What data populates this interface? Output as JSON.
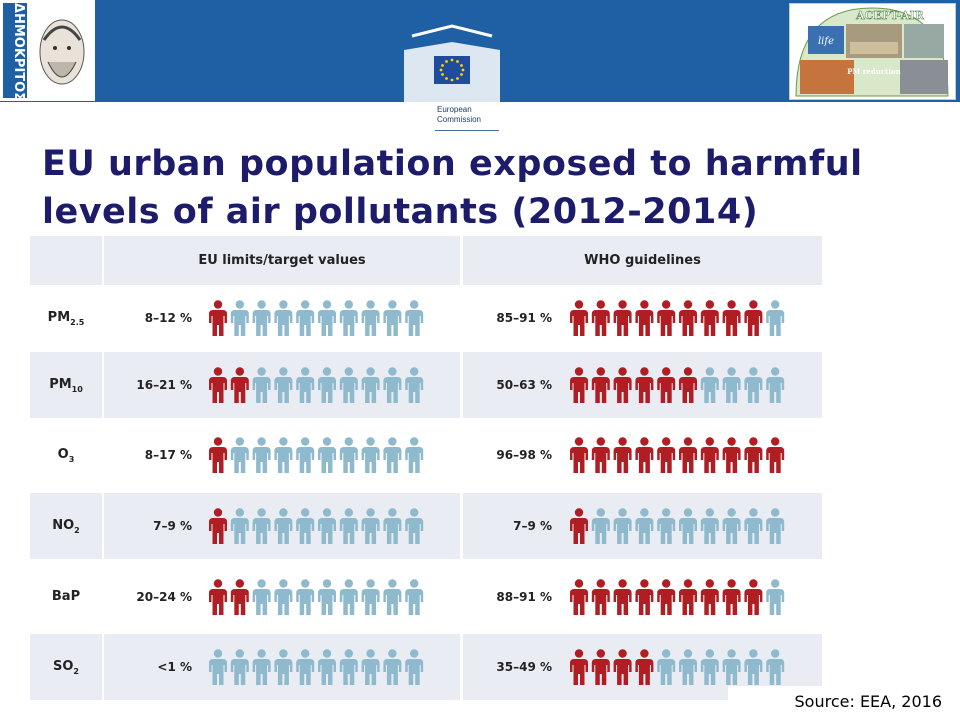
{
  "logos": {
    "left": {
      "text": "ΔΗΜΟΚΡΙΤΟΣ"
    },
    "right": {
      "title": "ACEPT-AIR",
      "subtitle": "PM reduction",
      "mark": "life"
    },
    "center": {
      "line1": "European",
      "line2": "Commission"
    }
  },
  "title": {
    "line1": "EU urban population exposed to harmful",
    "line2": "levels of air pollutants (2012-2014)"
  },
  "table": {
    "headers": {
      "eu": "EU limits/target values",
      "who": "WHO guidelines"
    },
    "total_icons": 10,
    "rows": [
      {
        "pollutant": "PM",
        "sub": "2.5",
        "eu_pct": "8–12 %",
        "eu_red": 1,
        "who_pct": "85–91 %",
        "who_red": 9
      },
      {
        "pollutant": "PM",
        "sub": "10",
        "eu_pct": "16–21 %",
        "eu_red": 2,
        "who_pct": "50–63 %",
        "who_red": 6
      },
      {
        "pollutant": "O",
        "sub": "3",
        "eu_pct": "8–17 %",
        "eu_red": 1,
        "who_pct": "96–98 %",
        "who_red": 10
      },
      {
        "pollutant": "NO",
        "sub": "2",
        "eu_pct": "7–9 %",
        "eu_red": 1,
        "who_pct": "7–9 %",
        "who_red": 1
      },
      {
        "pollutant": "BaP",
        "sub": "",
        "eu_pct": "20–24 %",
        "eu_red": 2,
        "who_pct": "88–91 %",
        "who_red": 9
      },
      {
        "pollutant": "SO",
        "sub": "2",
        "eu_pct": "<1 %",
        "eu_red": 0,
        "who_pct": "35–49 %",
        "who_red": 4
      }
    ]
  },
  "source": "Source: EEA, 2016",
  "colors": {
    "banner": "#1f5fa4",
    "title": "#1c1c6b",
    "exposed": "#b01e23",
    "not_exposed": "#8fb9cd",
    "row_bg": "#e9edf3"
  }
}
